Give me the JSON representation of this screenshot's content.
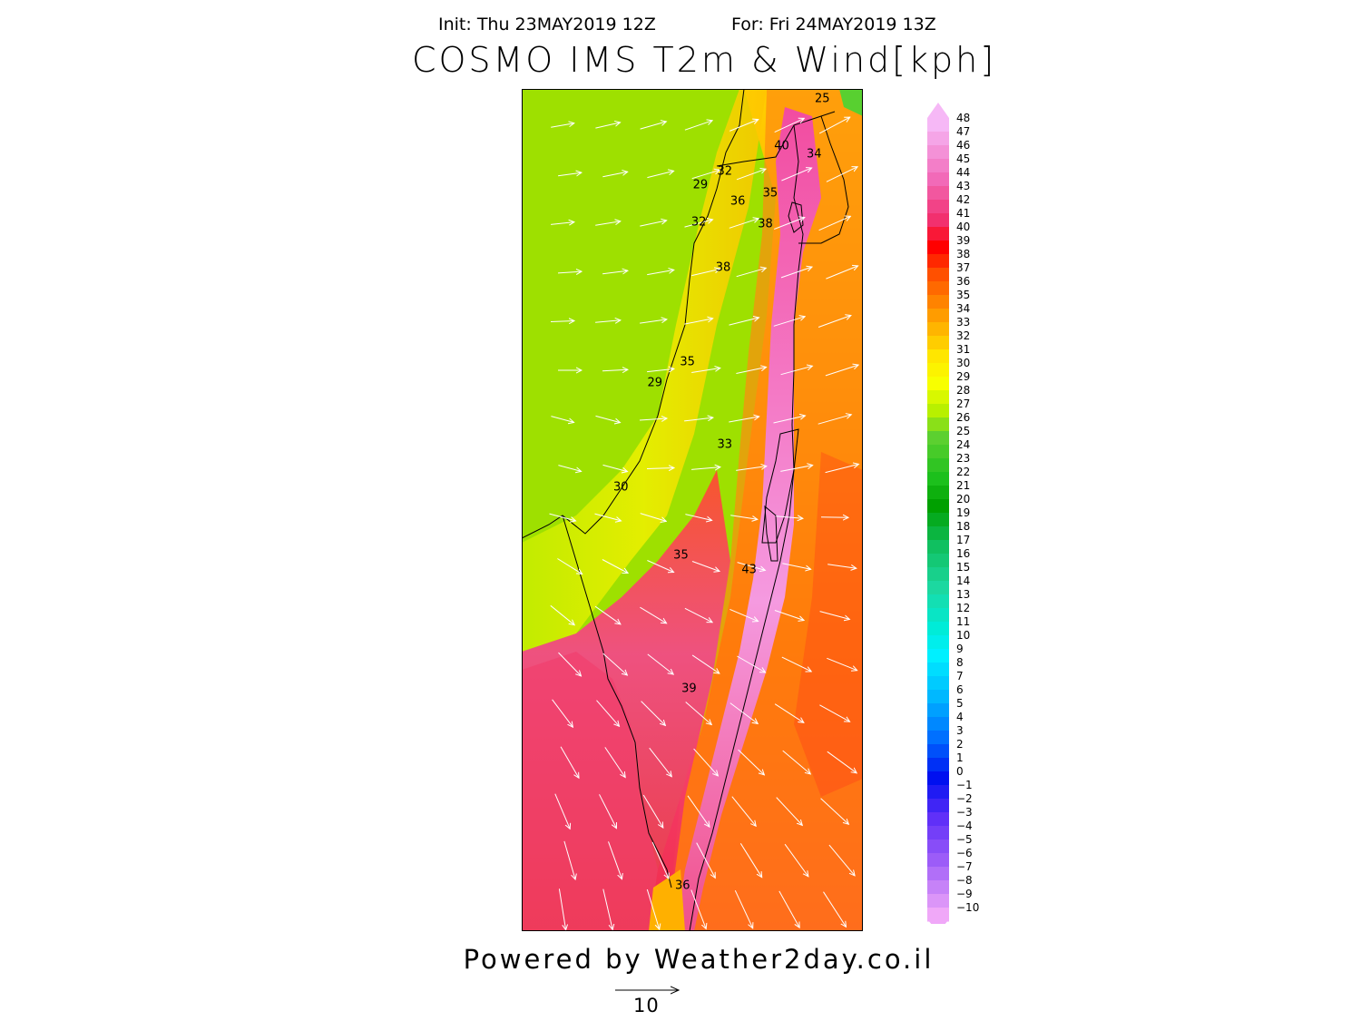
{
  "header": {
    "init": "Init: Thu 23MAY2019 12Z",
    "valid": "For: Fri 24MAY2019 13Z"
  },
  "title": "COSMO IMS T2m & Wind[kph]",
  "footer": {
    "powered_by": "Powered by Weather2day.co.il",
    "reference_vector_label": "10",
    "reference_vector_kph": 10
  },
  "colorbar": {
    "min": -10,
    "max": 48,
    "labels": [
      "48",
      "47",
      "46",
      "45",
      "44",
      "43",
      "42",
      "41",
      "40",
      "39",
      "38",
      "37",
      "36",
      "35",
      "34",
      "33",
      "32",
      "31",
      "30",
      "29",
      "28",
      "27",
      "26",
      "25",
      "24",
      "23",
      "22",
      "21",
      "20",
      "19",
      "18",
      "17",
      "16",
      "15",
      "14",
      "13",
      "12",
      "11",
      "10",
      "9",
      "8",
      "7",
      "6",
      "5",
      "4",
      "3",
      "2",
      "1",
      "0",
      "−1",
      "−2",
      "−3",
      "−4",
      "−5",
      "−6",
      "−7",
      "−8",
      "−9",
      "−10"
    ],
    "colors": {
      "lavender": "#f2a6f2",
      "pink_hot": "#f24ca0",
      "red": "#ff1e1e",
      "orange": "#ff8c00",
      "yellow": "#ffff00",
      "lime": "#a0e600",
      "green": "#18b018",
      "teal": "#18d8a0",
      "cyan": "#00f0ff",
      "blue": "#0010f0",
      "violet": "#b870f8"
    }
  },
  "map": {
    "region": "Israel",
    "sea_temp_color": "#9ae000",
    "temperature_labels": [
      {
        "value": "25",
        "lon": 35.85,
        "lat": 33.45
      },
      {
        "value": "40",
        "lon": 35.6,
        "lat": 33.22
      },
      {
        "value": "34",
        "lon": 35.8,
        "lat": 33.18
      },
      {
        "value": "32",
        "lon": 35.25,
        "lat": 33.1
      },
      {
        "value": "29",
        "lon": 35.1,
        "lat": 33.03
      },
      {
        "value": "36",
        "lon": 35.33,
        "lat": 32.95
      },
      {
        "value": "35",
        "lon": 35.53,
        "lat": 32.99
      },
      {
        "value": "32",
        "lon": 35.09,
        "lat": 32.85
      },
      {
        "value": "38",
        "lon": 35.5,
        "lat": 32.84
      },
      {
        "value": "38",
        "lon": 35.24,
        "lat": 32.63
      },
      {
        "value": "35",
        "lon": 35.02,
        "lat": 32.17
      },
      {
        "value": "29",
        "lon": 34.82,
        "lat": 32.07
      },
      {
        "value": "33",
        "lon": 35.25,
        "lat": 31.77
      },
      {
        "value": "30",
        "lon": 34.61,
        "lat": 31.56
      },
      {
        "value": "35",
        "lon": 34.98,
        "lat": 31.23
      },
      {
        "value": "43",
        "lon": 35.4,
        "lat": 31.16
      },
      {
        "value": "39",
        "lon": 35.03,
        "lat": 30.58
      },
      {
        "value": "36",
        "lon": 34.99,
        "lat": 29.62
      }
    ],
    "lon_range": [
      34.0,
      36.1
    ],
    "lat_range": [
      29.4,
      33.5
    ]
  }
}
